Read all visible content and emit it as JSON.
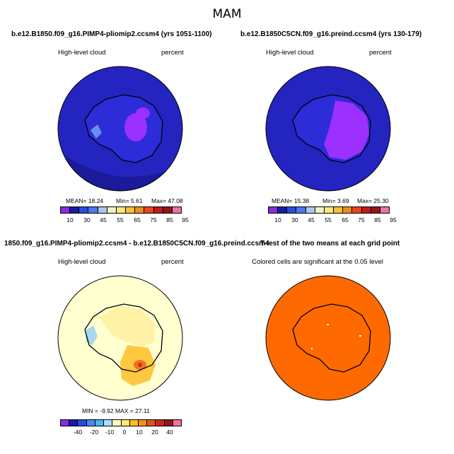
{
  "figure": {
    "title": "MAM"
  },
  "panels": [
    {
      "title": "b.e12.B1850.f09_g16.PIMP4-pliomip2.ccsm4 (yrs 1051-1100)",
      "left_label": "High-level cloud",
      "right_label": "percent",
      "stats": {
        "mean": "MEAN=  18.24",
        "min": "Min=   5.61",
        "max": "Max=  47.08"
      },
      "colorbar_ticks": [
        "10",
        "30",
        "45",
        "55",
        "65",
        "75",
        "85",
        "95"
      ]
    },
    {
      "title": "b.e12.B1850C5CN.f09_g16.preind.ccsm4 (yrs 130-179)",
      "left_label": "High-level cloud",
      "right_label": "percent",
      "stats": {
        "mean": "MEAN=  15.38",
        "min": "Min=   3.69",
        "max": "Max=  25.30"
      },
      "colorbar_ticks": [
        "10",
        "30",
        "45",
        "55",
        "65",
        "75",
        "85",
        "95"
      ]
    },
    {
      "title": "1850.f09_g16.PIMP4-pliomip2.ccsm4 - b.e12.B1850C5CN.f09_g16.preind.ccsm4",
      "left_label": "High-level cloud",
      "right_label": "percent",
      "stats": {
        "minmax": "MIN =  -9.92   MAX =  27.11"
      },
      "colorbar_ticks": [
        "-40",
        "-20",
        "-10",
        "0",
        "10",
        "20",
        "40"
      ]
    },
    {
      "title": "T-test of the two means at each grid point",
      "label": "Colored cells are significant at the 0.05 level"
    }
  ],
  "colors": {
    "abs_scale": [
      "#8a2be2",
      "#1a1aa8",
      "#2a4cd8",
      "#4a78f0",
      "#a8c8f0",
      "#f0f0c8",
      "#f8e878",
      "#f8c030",
      "#f08c18",
      "#e84818",
      "#c81818",
      "#901818",
      "#f070a8"
    ],
    "diff_scale": [
      "#8a2be2",
      "#1a1aa8",
      "#2a4cd8",
      "#4a8af0",
      "#48b8f0",
      "#a8e0f8",
      "#ffffc8",
      "#ffe878",
      "#ffc020",
      "#f89018",
      "#e85018",
      "#c82818",
      "#901818",
      "#f070a8"
    ],
    "ocean_abs": "#2727c9",
    "ocean_diff": "#ffffd0",
    "ttest_fill": "#ff6a00"
  }
}
